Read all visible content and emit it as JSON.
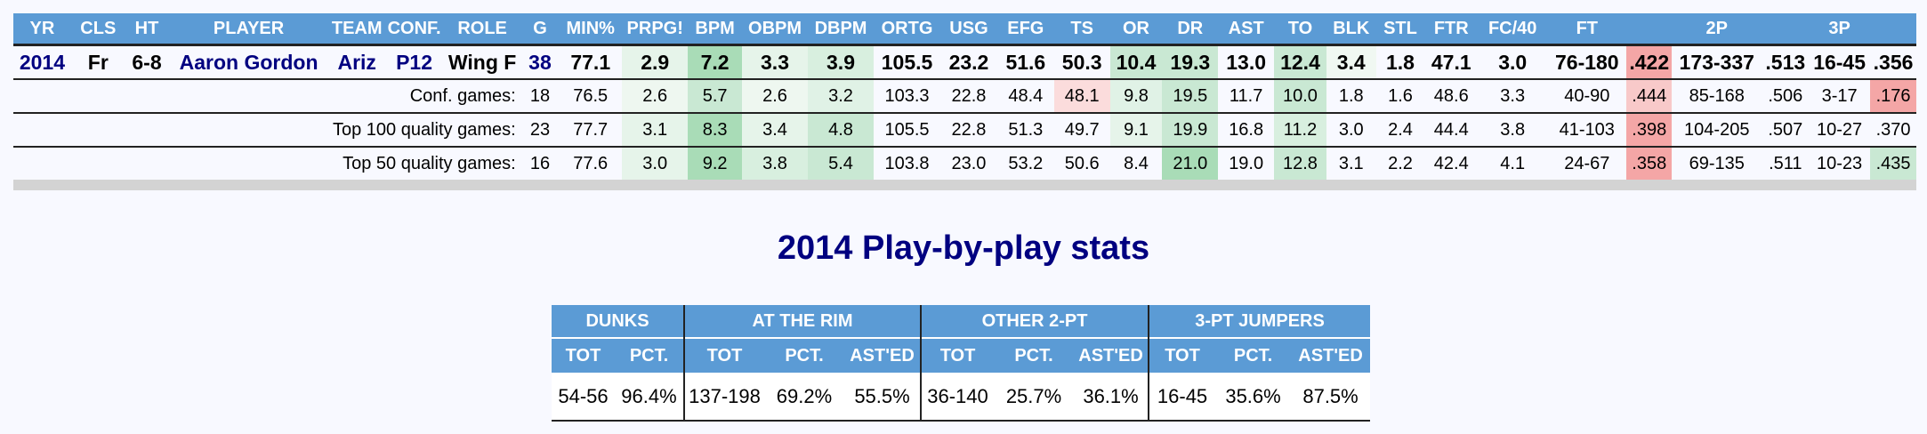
{
  "headers": [
    "YR",
    "CLS",
    "HT",
    "PLAYER",
    "TEAM",
    "CONF.",
    "ROLE",
    "G",
    "MIN%",
    "PRPG!",
    "BPM",
    "OBPM",
    "DBPM",
    "ORTG",
    "USG",
    "EFG",
    "TS",
    "OR",
    "DR",
    "AST",
    "TO",
    "BLK",
    "STL",
    "FTR",
    "FC/40",
    "FT",
    "",
    "2P",
    "",
    "3P",
    ""
  ],
  "season_row": [
    "2014",
    "Fr",
    "6-8",
    "Aaron Gordon",
    "Ariz",
    "P12",
    "Wing F",
    "38",
    "77.1",
    "2.9",
    "7.2",
    "3.3",
    "3.9",
    "105.5",
    "23.2",
    "51.6",
    "50.3",
    "10.4",
    "19.3",
    "13.0",
    "12.4",
    "3.4",
    "1.8",
    "47.1",
    "3.0",
    "76-180",
    ".422",
    "173-337",
    ".513",
    "16-45",
    ".356"
  ],
  "split_rows": [
    {
      "label": "Conf. games:",
      "values": [
        "18",
        "76.5",
        "2.6",
        "5.7",
        "2.6",
        "3.2",
        "103.3",
        "22.8",
        "48.4",
        "48.1",
        "9.8",
        "19.5",
        "11.7",
        "10.0",
        "1.8",
        "1.6",
        "48.6",
        "3.3",
        "40-90",
        ".444",
        "85-168",
        ".506",
        "3-17",
        ".176"
      ]
    },
    {
      "label": "Top 100 quality games:",
      "values": [
        "23",
        "77.7",
        "3.1",
        "8.3",
        "3.4",
        "4.8",
        "105.5",
        "22.8",
        "51.3",
        "49.7",
        "9.1",
        "19.9",
        "16.8",
        "11.2",
        "3.0",
        "2.4",
        "44.4",
        "3.8",
        "41-103",
        ".398",
        "104-205",
        ".507",
        "10-27",
        ".370"
      ]
    },
    {
      "label": "Top 50 quality games:",
      "values": [
        "16",
        "77.6",
        "3.0",
        "9.2",
        "3.8",
        "5.4",
        "103.8",
        "23.0",
        "53.2",
        "50.6",
        "8.4",
        "21.0",
        "19.0",
        "12.8",
        "3.1",
        "2.2",
        "42.4",
        "4.1",
        "24-67",
        ".358",
        "69-135",
        ".511",
        "10-23",
        ".435"
      ]
    }
  ],
  "pbp": {
    "title": "2014 Play-by-play stats",
    "groups": [
      "DUNKS",
      "AT THE RIM",
      "OTHER 2-PT",
      "3-PT JUMPERS"
    ],
    "subheaders": [
      "TOT",
      "PCT.",
      "TOT",
      "PCT.",
      "AST'ED",
      "TOT",
      "PCT.",
      "AST'ED",
      "TOT",
      "PCT.",
      "AST'ED"
    ],
    "values": [
      "54-56",
      "96.4%",
      "137-198",
      "69.2%",
      "55.5%",
      "36-140",
      "25.7%",
      "36.1%",
      "16-45",
      "35.6%",
      "87.5%"
    ]
  },
  "colors": {
    "header_bg": "#5b9bd5",
    "navy": "#000080",
    "green_light": "#e6f4ea",
    "green_mid": "#c9e8d3",
    "green_strong": "#a9dcb7",
    "red_light": "#fbdcdc",
    "red_strong": "#f4a6a6"
  }
}
